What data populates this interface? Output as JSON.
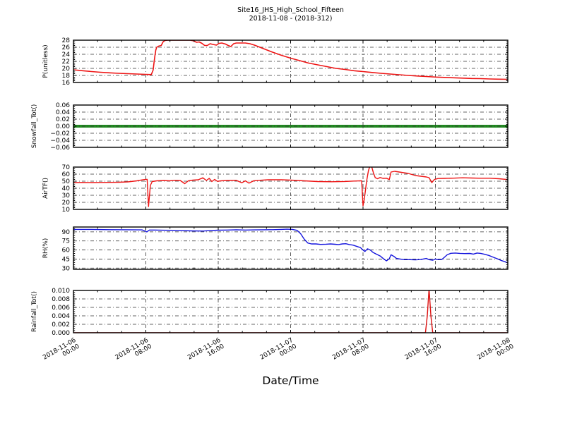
{
  "title": {
    "line1": "Site16_JHS_High_School_Fifteen",
    "line2": "2018-11-08 - (2018-312)"
  },
  "xlabel": "Date/Time",
  "x_axis": {
    "range_hours": [
      0,
      48
    ],
    "minor_divisions_per_interval": 3,
    "ticks": [
      {
        "t": 0,
        "date": "2018-11-06",
        "time": "00:00"
      },
      {
        "t": 8,
        "date": "2018-11-06",
        "time": "08:00"
      },
      {
        "t": 16,
        "date": "2018-11-06",
        "time": "16:00"
      },
      {
        "t": 24,
        "date": "2018-11-07",
        "time": "00:00"
      },
      {
        "t": 32,
        "date": "2018-11-07",
        "time": "08:00"
      },
      {
        "t": 40,
        "date": "2018-11-07",
        "time": "16:00"
      },
      {
        "t": 48,
        "date": "2018-11-08",
        "time": "00:00"
      }
    ]
  },
  "chart_data": [
    {
      "type": "line",
      "name": "P",
      "ylabel": "P(unitless)",
      "ylim": [
        16,
        28
      ],
      "yticks": [
        16,
        18,
        20,
        22,
        24,
        26,
        28
      ],
      "ytick_labels": [
        "16",
        "18",
        "20",
        "22",
        "24",
        "26",
        "28"
      ],
      "color": "#ee1515",
      "linewidth": 1.6,
      "grid_over_line": false,
      "points": [
        [
          0,
          19.6
        ],
        [
          1,
          19.35
        ],
        [
          2,
          19.1
        ],
        [
          3,
          18.9
        ],
        [
          4,
          18.75
        ],
        [
          5,
          18.6
        ],
        [
          6,
          18.5
        ],
        [
          7,
          18.4
        ],
        [
          8,
          18.3
        ],
        [
          8.6,
          18.25
        ],
        [
          8.8,
          19.5
        ],
        [
          8.9,
          21.5
        ],
        [
          9,
          23.5
        ],
        [
          9.1,
          25.2
        ],
        [
          9.2,
          26
        ],
        [
          9.4,
          26.3
        ],
        [
          9.7,
          26.5
        ],
        [
          9.9,
          27.5
        ],
        [
          10.1,
          27.9
        ],
        [
          10.4,
          28
        ],
        [
          12.9,
          28
        ],
        [
          13.3,
          27.8
        ],
        [
          13.6,
          27.4
        ],
        [
          13.9,
          27.5
        ],
        [
          14.2,
          27.1
        ],
        [
          14.5,
          26.5
        ],
        [
          14.8,
          26.5
        ],
        [
          15.1,
          27
        ],
        [
          15.4,
          26.8
        ],
        [
          15.8,
          26.6
        ],
        [
          16.1,
          27.1
        ],
        [
          16.4,
          27.2
        ],
        [
          16.8,
          26.9
        ],
        [
          17.1,
          26.5
        ],
        [
          17.4,
          26.2
        ],
        [
          17.7,
          27
        ],
        [
          18,
          27.2
        ],
        [
          19,
          27.2
        ],
        [
          19.5,
          27
        ],
        [
          20,
          26.6
        ],
        [
          21,
          25.6
        ],
        [
          22,
          24.6
        ],
        [
          23,
          23.7
        ],
        [
          24,
          22.9
        ],
        [
          25,
          22.2
        ],
        [
          26,
          21.5
        ],
        [
          27,
          21
        ],
        [
          28,
          20.5
        ],
        [
          29,
          20
        ],
        [
          30,
          19.7
        ],
        [
          31,
          19.35
        ],
        [
          32,
          19.1
        ],
        [
          33,
          18.85
        ],
        [
          34,
          18.6
        ],
        [
          35,
          18.4
        ],
        [
          36,
          18.2
        ],
        [
          37,
          18
        ],
        [
          38,
          17.85
        ],
        [
          39,
          17.7
        ],
        [
          40,
          17.55
        ],
        [
          41,
          17.45
        ],
        [
          42,
          17.35
        ],
        [
          43,
          17.25
        ],
        [
          44,
          17.15
        ],
        [
          45,
          17.1
        ],
        [
          46,
          17
        ],
        [
          47,
          16.95
        ],
        [
          48,
          16.9
        ]
      ]
    },
    {
      "type": "line",
      "name": "Snowfall_Tot",
      "ylabel": "Snowfall_Tot()",
      "ylim": [
        -0.06,
        0.06
      ],
      "yticks": [
        -0.06,
        -0.04,
        -0.02,
        0,
        0.02,
        0.04,
        0.06
      ],
      "ytick_labels": [
        "−0.06",
        "−0.04",
        "−0.02",
        "0.00",
        "0.02",
        "0.04",
        "0.06"
      ],
      "color": "#228b22",
      "linewidth": 4,
      "grid_over_line": true,
      "points": [
        [
          0,
          0
        ],
        [
          48,
          0
        ]
      ]
    },
    {
      "type": "line",
      "name": "AirTF",
      "ylabel": "AirTF()",
      "ylim": [
        10,
        70
      ],
      "yticks": [
        10,
        20,
        30,
        40,
        50,
        60,
        70
      ],
      "ytick_labels": [
        "10",
        "20",
        "30",
        "40",
        "50",
        "60",
        "70"
      ],
      "color": "#ee1515",
      "linewidth": 1.4,
      "grid_over_line": false,
      "points": [
        [
          0,
          48
        ],
        [
          1,
          48.2
        ],
        [
          2,
          48
        ],
        [
          3,
          48.2
        ],
        [
          4,
          48.3
        ],
        [
          5,
          48.5
        ],
        [
          6,
          49
        ],
        [
          7,
          50.5
        ],
        [
          7.7,
          52
        ],
        [
          8,
          52.5
        ],
        [
          8.15,
          52.5
        ],
        [
          8.3,
          14
        ],
        [
          8.5,
          44
        ],
        [
          8.7,
          49.5
        ],
        [
          9.2,
          50.5
        ],
        [
          10,
          51
        ],
        [
          10.6,
          50.5
        ],
        [
          11.2,
          51.2
        ],
        [
          11.8,
          51
        ],
        [
          12.3,
          46.5
        ],
        [
          12.7,
          50.5
        ],
        [
          13.2,
          51.5
        ],
        [
          13.8,
          52
        ],
        [
          14.3,
          54.8
        ],
        [
          14.7,
          51
        ],
        [
          15,
          54
        ],
        [
          15.3,
          49.5
        ],
        [
          15.6,
          52.5
        ],
        [
          15.9,
          49.8
        ],
        [
          16.3,
          50.5
        ],
        [
          17,
          51
        ],
        [
          18,
          51.3
        ],
        [
          18.6,
          47.8
        ],
        [
          19,
          50.5
        ],
        [
          19.4,
          47.2
        ],
        [
          19.9,
          50.5
        ],
        [
          20.5,
          51.2
        ],
        [
          21.5,
          52
        ],
        [
          23,
          52
        ],
        [
          24,
          51.5
        ],
        [
          25.5,
          50.5
        ],
        [
          27,
          49.5
        ],
        [
          28.5,
          49.2
        ],
        [
          30,
          49.6
        ],
        [
          31,
          50.2
        ],
        [
          31.7,
          50.5
        ],
        [
          31.85,
          50.5
        ],
        [
          32,
          15
        ],
        [
          32.15,
          25
        ],
        [
          32.4,
          50
        ],
        [
          32.6,
          65
        ],
        [
          32.75,
          70.8
        ],
        [
          32.95,
          70.8
        ],
        [
          33.15,
          62
        ],
        [
          33.35,
          55
        ],
        [
          33.6,
          53.5
        ],
        [
          33.9,
          55.2
        ],
        [
          34.2,
          54
        ],
        [
          34.6,
          54.2
        ],
        [
          34.9,
          52.2
        ],
        [
          35.1,
          63
        ],
        [
          35.5,
          64
        ],
        [
          36,
          63
        ],
        [
          36.5,
          62
        ],
        [
          37,
          61
        ],
        [
          37.4,
          59.5
        ],
        [
          37.8,
          58
        ],
        [
          38.4,
          57
        ],
        [
          39,
          56
        ],
        [
          39.3,
          55
        ],
        [
          39.6,
          48
        ],
        [
          39.9,
          52.5
        ],
        [
          40.3,
          53.8
        ],
        [
          41,
          54
        ],
        [
          42,
          54.3
        ],
        [
          43,
          54.8
        ],
        [
          44,
          54.5
        ],
        [
          45,
          54.2
        ],
        [
          46,
          54.2
        ],
        [
          47,
          53.5
        ],
        [
          48,
          52.3
        ]
      ]
    },
    {
      "type": "line",
      "name": "RH",
      "ylabel": "RH(%)",
      "ylim": [
        28,
        98
      ],
      "yticks": [
        30,
        45,
        60,
        75,
        90
      ],
      "ytick_labels": [
        "30",
        "45",
        "60",
        "75",
        "90"
      ],
      "color": "#1515dd",
      "linewidth": 1.4,
      "grid_over_line": false,
      "points": [
        [
          0,
          94
        ],
        [
          2,
          94
        ],
        [
          4,
          93.6
        ],
        [
          6,
          93.4
        ],
        [
          7.6,
          93.2
        ],
        [
          8.1,
          90
        ],
        [
          8.4,
          93
        ],
        [
          9,
          93
        ],
        [
          10,
          92.6
        ],
        [
          11,
          92.5
        ],
        [
          12,
          92
        ],
        [
          13,
          91.6
        ],
        [
          14.4,
          91.4
        ],
        [
          15,
          92
        ],
        [
          16,
          92.8
        ],
        [
          17,
          93
        ],
        [
          18,
          93.4
        ],
        [
          19,
          93
        ],
        [
          20,
          93.2
        ],
        [
          21,
          93.5
        ],
        [
          22,
          93.6
        ],
        [
          23,
          94
        ],
        [
          23.6,
          94.4
        ],
        [
          24.2,
          94
        ],
        [
          24.7,
          92.5
        ],
        [
          25.1,
          87
        ],
        [
          25.5,
          78
        ],
        [
          25.9,
          71.5
        ],
        [
          26.3,
          70
        ],
        [
          26.8,
          70
        ],
        [
          27.3,
          69.2
        ],
        [
          27.9,
          69.5
        ],
        [
          28.4,
          70
        ],
        [
          28.9,
          69.4
        ],
        [
          29.3,
          69
        ],
        [
          29.7,
          70
        ],
        [
          30.1,
          70.4
        ],
        [
          30.5,
          69
        ],
        [
          30.9,
          68
        ],
        [
          31.3,
          66
        ],
        [
          31.7,
          64
        ],
        [
          32,
          60
        ],
        [
          32.2,
          57.5
        ],
        [
          32.5,
          62
        ],
        [
          32.8,
          60
        ],
        [
          33.1,
          56
        ],
        [
          33.5,
          53
        ],
        [
          33.9,
          50
        ],
        [
          34.3,
          45
        ],
        [
          34.6,
          42
        ],
        [
          34.9,
          45.5
        ],
        [
          35.1,
          52
        ],
        [
          35.4,
          49.5
        ],
        [
          35.7,
          46
        ],
        [
          36.1,
          45
        ],
        [
          36.6,
          44
        ],
        [
          37.2,
          44
        ],
        [
          37.8,
          43.6
        ],
        [
          38.4,
          44.2
        ],
        [
          39,
          46
        ],
        [
          39.3,
          44
        ],
        [
          39.7,
          43
        ],
        [
          40,
          45
        ],
        [
          40.3,
          44
        ],
        [
          40.7,
          44.2
        ],
        [
          41,
          48
        ],
        [
          41.3,
          52
        ],
        [
          41.7,
          54.5
        ],
        [
          42.2,
          55
        ],
        [
          42.7,
          54.4
        ],
        [
          43.2,
          54
        ],
        [
          43.8,
          54.2
        ],
        [
          44.2,
          53.2
        ],
        [
          44.6,
          55
        ],
        [
          45,
          54.4
        ],
        [
          45.4,
          53
        ],
        [
          45.9,
          51
        ],
        [
          46.4,
          48
        ],
        [
          46.9,
          45
        ],
        [
          47.3,
          42.5
        ],
        [
          47.7,
          40.5
        ],
        [
          48,
          38.5
        ]
      ]
    },
    {
      "type": "line",
      "name": "Rainfall_Tot",
      "ylabel": "Rainfall_Tot()",
      "ylim": [
        0,
        0.01
      ],
      "yticks": [
        0,
        0.002,
        0.004,
        0.006,
        0.008,
        0.01
      ],
      "ytick_labels": [
        "0.000",
        "0.002",
        "0.004",
        "0.006",
        "0.008",
        "0.010"
      ],
      "color": "#dd1111",
      "linewidth": 1.4,
      "grid_over_line": false,
      "points": [
        [
          0,
          0
        ],
        [
          38.9,
          0
        ],
        [
          39.1,
          0.004
        ],
        [
          39.3,
          0.0104
        ],
        [
          39.5,
          0.004
        ],
        [
          39.7,
          0
        ],
        [
          48,
          0
        ]
      ]
    }
  ]
}
